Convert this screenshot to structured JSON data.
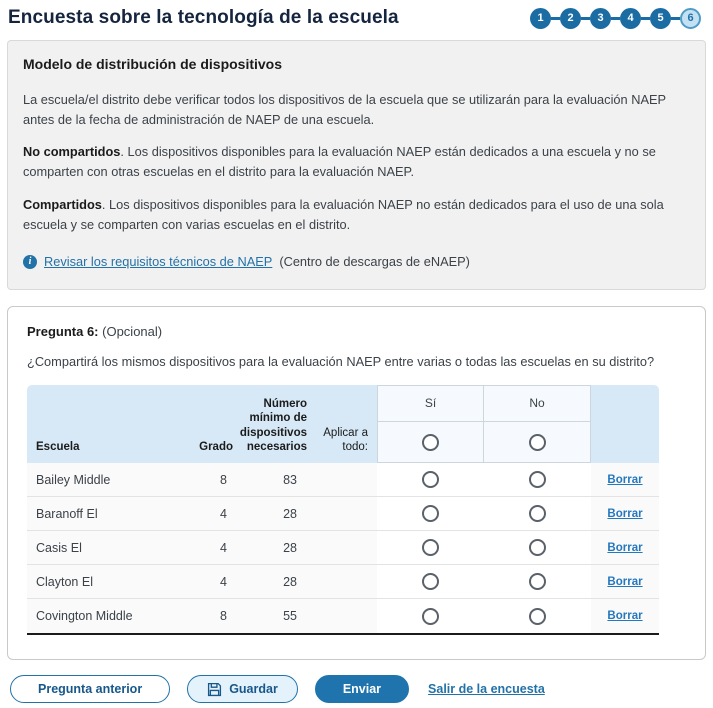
{
  "page": {
    "title": "Encuesta sobre la tecnología de la escuela"
  },
  "stepper": {
    "steps": [
      {
        "label": "1",
        "state": "done"
      },
      {
        "label": "2",
        "state": "done"
      },
      {
        "label": "3",
        "state": "done"
      },
      {
        "label": "4",
        "state": "done"
      },
      {
        "label": "5",
        "state": "done"
      },
      {
        "label": "6",
        "state": "current"
      }
    ]
  },
  "info_panel": {
    "title": "Modelo de distribución de dispositivos",
    "paragraph1": "La escuela/el distrito debe verificar todos los dispositivos de la escuela que se utilizarán para la evaluación NAEP antes de la fecha de administración de NAEP de una escuela.",
    "term1": "No compartidos",
    "term1_text": ". Los dispositivos disponibles para la evaluación NAEP están dedicados a una escuela y no se comparten con otras escuelas en el distrito para la evaluación NAEP.",
    "term2": "Compartidos",
    "term2_text": ". Los dispositivos disponibles para la evaluación NAEP no están dedicados para el uso de una sola escuela y se comparten con varias escuelas en el distrito.",
    "info_icon": "info-icon",
    "info_icon_glyph": "i",
    "link_label": "Revisar los requisitos técnicos de NAEP",
    "link_suffix": "(Centro de descargas de eNAEP)"
  },
  "question_panel": {
    "label": "Pregunta 6:",
    "optional": "(Opcional)",
    "question": "¿Compartirá los mismos dispositivos para la evaluación NAEP entre varias o todas las escuelas en su distrito?",
    "table": {
      "headers": {
        "school": "Escuela",
        "grade": "Grado",
        "min_devices": "Número mínimo de dispositivos necesarios",
        "apply_all": "Aplicar a todo:",
        "yes": "Sí",
        "no": "No"
      },
      "delete_label": "Borrar",
      "rows": [
        {
          "school": "Bailey Middle",
          "grade": "8",
          "devices": "83"
        },
        {
          "school": "Baranoff El",
          "grade": "4",
          "devices": "28"
        },
        {
          "school": "Casis El",
          "grade": "4",
          "devices": "28"
        },
        {
          "school": "Clayton El",
          "grade": "4",
          "devices": "28"
        },
        {
          "school": "Covington Middle",
          "grade": "8",
          "devices": "55"
        }
      ]
    }
  },
  "footer": {
    "prev_label": "Pregunta anterior",
    "save_label": "Guardar",
    "save_icon": "floppy-disk-icon",
    "submit_label": "Enviar",
    "exit_label": "Salir de la encuesta"
  },
  "colors": {
    "accent_blue": "#1f74ad",
    "step_done": "#1a6ca3",
    "step_current_bg": "#c3e1f3",
    "step_current_border": "#4e9bc8",
    "link_blue": "#2272a8",
    "table_header_bg": "#d7e9f7",
    "choice_box_bg": "#f6fafe",
    "row_bg": "#fafafa",
    "info_panel_bg": "#f1f1f1",
    "title_navy": "#15243f"
  }
}
